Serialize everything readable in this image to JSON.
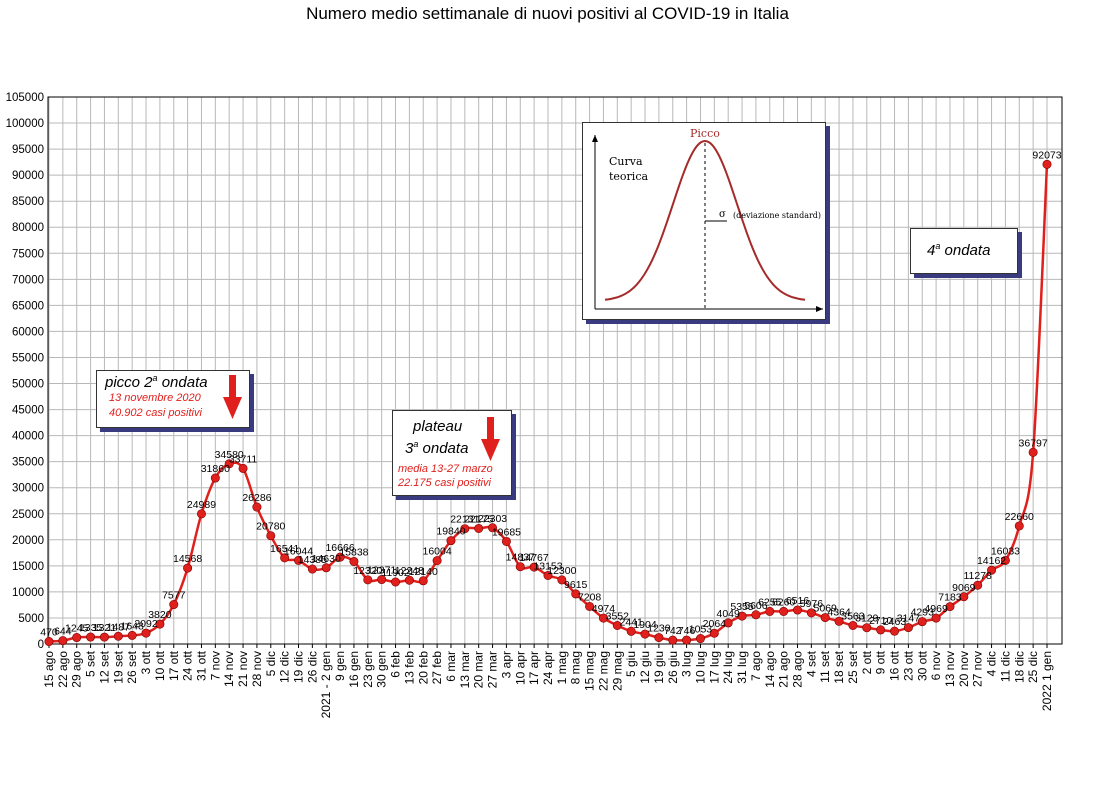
{
  "chart_data": {
    "type": "line",
    "title": "Numero medio settimanale di nuovi positivi al COVID-19 in Italia",
    "ylim": [
      0,
      105000
    ],
    "yticks": [
      0,
      5000,
      10000,
      15000,
      20000,
      25000,
      30000,
      35000,
      40000,
      45000,
      50000,
      55000,
      60000,
      65000,
      70000,
      75000,
      80000,
      85000,
      90000,
      95000,
      100000,
      105000
    ],
    "grid": true,
    "line_color": "#e0201c",
    "marker_color": "#e0201c",
    "x": [
      "15 ago",
      "22 ago",
      "29 ago",
      "5 set",
      "12 set",
      "19 set",
      "26 set",
      "3 ott",
      "10 ott",
      "17 ott",
      "24 ott",
      "31 ott",
      "7 nov",
      "14 nov",
      "21 nov",
      "28 nov",
      "5 dic",
      "12 dic",
      "19 dic",
      "26 dic",
      "2021 - 2 gen",
      "9 gen",
      "16 gen",
      "23 gen",
      "30 gen",
      "6 feb",
      "13 feb",
      "20 feb",
      "27 feb",
      "6 mar",
      "13 mar",
      "20 mar",
      "27 mar",
      "3 apr",
      "10 apr",
      "17 apr",
      "24 apr",
      "1 mag",
      "8 mag",
      "15 mag",
      "22 mag",
      "29 mag",
      "5 giu",
      "12 giu",
      "19 giu",
      "26 giu",
      "3 lug",
      "10 lug",
      "17 lug",
      "24 lug",
      "31 lug",
      "7 ago",
      "14 ago",
      "21 ago",
      "28 ago",
      "4 set",
      "11 set",
      "18 set",
      "25 set",
      "2 ott",
      "9 ott",
      "16 ott",
      "23 ott",
      "30 ott",
      "6 nov",
      "13 nov",
      "20 nov",
      "27 nov",
      "4 dic",
      "11 dic",
      "18 dic",
      "25 dic",
      "2022 1 gen"
    ],
    "values": [
      470,
      644,
      1245,
      1335,
      1321,
      1487,
      1648,
      2092,
      3820,
      7577,
      14568,
      24989,
      31860,
      34580,
      33711,
      26286,
      20780,
      16541,
      16044,
      14385,
      14630,
      16666,
      15838,
      12320,
      12371,
      11902,
      12248,
      12140,
      16004,
      19840,
      22131,
      22175,
      22303,
      19685,
      14837,
      14767,
      13153,
      12300,
      9615,
      7208,
      4974,
      3552,
      2441,
      1904,
      1230,
      742,
      746,
      1053,
      2064,
      4049,
      5355,
      5606,
      6255,
      6260,
      6516,
      5976,
      5069,
      4364,
      3563,
      3129,
      2710,
      2463,
      3147,
      4293,
      4969,
      7183,
      9069,
      11278,
      14162,
      16033,
      22660,
      36797,
      92073
    ],
    "annotations": {
      "picco": {
        "title_pre": "picco 2",
        "title_sup": "a",
        "title_post": " ondata",
        "line1": "13 novembre 2020",
        "line2": "40.902 casi positivi"
      },
      "plateau": {
        "title1": "plateau",
        "title2_pre": "3",
        "title2_sup": "a",
        "title2_post": " ondata",
        "line1": "media 13-27 marzo",
        "line2": "22.175 casi positivi"
      },
      "quarta": {
        "pre": "4",
        "sup": "a",
        "post": " ondata"
      }
    },
    "inset": {
      "label_peak": "Picco",
      "label_curve1": "Curva",
      "label_curve2": "teorica",
      "label_sigma": "σ",
      "label_dev": "(deviazione standard)"
    }
  }
}
